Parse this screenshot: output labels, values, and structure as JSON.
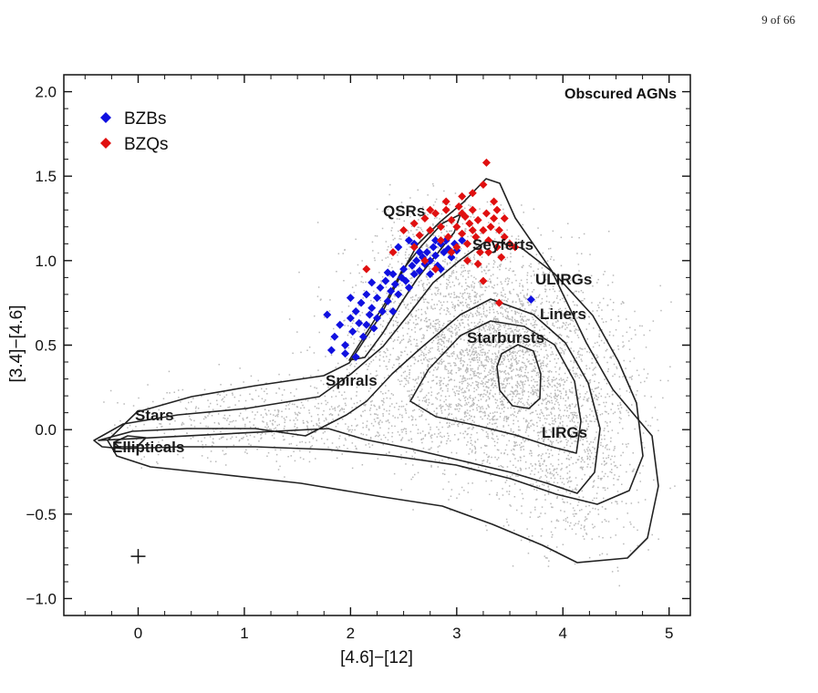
{
  "page": {
    "number_text": "9 of 66"
  },
  "chart_data": {
    "type": "scatter",
    "title": "",
    "annotation": "Obscured AGNs",
    "xlabel": "[4.6]−[12]",
    "ylabel": "[3.4]−[4.6]",
    "xlim": [
      -0.7,
      5.2
    ],
    "ylim": [
      -1.1,
      2.1
    ],
    "x_ticks": [
      {
        "value": 0,
        "label": "0"
      },
      {
        "value": 1,
        "label": "1"
      },
      {
        "value": 2,
        "label": "2"
      },
      {
        "value": 3,
        "label": "3"
      },
      {
        "value": 4,
        "label": "4"
      },
      {
        "value": 5,
        "label": "5"
      }
    ],
    "y_ticks": [
      {
        "value": -1.0,
        "label": "−1.0"
      },
      {
        "value": -0.5,
        "label": "−0.5"
      },
      {
        "value": 0.0,
        "label": "0.0"
      },
      {
        "value": 0.5,
        "label": "0.5"
      },
      {
        "value": 1.0,
        "label": "1.0"
      },
      {
        "value": 1.5,
        "label": "1.5"
      },
      {
        "value": 2.0,
        "label": "2.0"
      }
    ],
    "grid": false,
    "legend": {
      "position": "top-left"
    },
    "series": [
      {
        "name": "BZBs",
        "color": "#1010e0",
        "marker": "diamond",
        "points": [
          [
            1.85,
            0.55
          ],
          [
            1.9,
            0.62
          ],
          [
            1.95,
            0.5
          ],
          [
            2.0,
            0.66
          ],
          [
            2.02,
            0.58
          ],
          [
            2.05,
            0.7
          ],
          [
            2.08,
            0.63
          ],
          [
            2.1,
            0.75
          ],
          [
            2.12,
            0.55
          ],
          [
            2.15,
            0.8
          ],
          [
            2.18,
            0.68
          ],
          [
            2.2,
            0.72
          ],
          [
            2.22,
            0.6
          ],
          [
            2.25,
            0.78
          ],
          [
            2.28,
            0.84
          ],
          [
            2.3,
            0.7
          ],
          [
            2.33,
            0.88
          ],
          [
            2.35,
            0.76
          ],
          [
            2.38,
            0.82
          ],
          [
            2.4,
            0.92
          ],
          [
            2.42,
            0.86
          ],
          [
            2.45,
            0.8
          ],
          [
            2.48,
            0.9
          ],
          [
            2.5,
            0.95
          ],
          [
            2.52,
            0.88
          ],
          [
            2.55,
            0.84
          ],
          [
            2.58,
            0.97
          ],
          [
            2.6,
            0.92
          ],
          [
            2.62,
            1.0
          ],
          [
            2.65,
            0.94
          ],
          [
            2.68,
            1.02
          ],
          [
            2.7,
            0.98
          ],
          [
            2.72,
            1.05
          ],
          [
            2.75,
            1.0
          ],
          [
            2.78,
            1.08
          ],
          [
            2.8,
            1.03
          ],
          [
            2.82,
            0.97
          ],
          [
            2.85,
            1.1
          ],
          [
            2.88,
            1.05
          ],
          [
            2.9,
            1.12
          ],
          [
            2.92,
            1.07
          ],
          [
            2.95,
            1.02
          ],
          [
            2.98,
            1.1
          ],
          [
            3.0,
            1.06
          ],
          [
            3.05,
            1.12
          ],
          [
            1.82,
            0.47
          ],
          [
            1.95,
            0.45
          ],
          [
            2.05,
            0.43
          ],
          [
            2.15,
            0.62
          ],
          [
            2.25,
            0.66
          ],
          [
            2.35,
            0.93
          ],
          [
            2.45,
            1.08
          ],
          [
            2.55,
            1.12
          ],
          [
            2.65,
            1.05
          ],
          [
            2.75,
            0.92
          ],
          [
            2.85,
            0.95
          ],
          [
            3.7,
            0.77
          ],
          [
            1.78,
            0.68
          ],
          [
            2.0,
            0.78
          ],
          [
            2.2,
            0.87
          ],
          [
            2.4,
            0.7
          ],
          [
            2.6,
            1.1
          ],
          [
            2.8,
            1.12
          ]
        ]
      },
      {
        "name": "BZQs",
        "color": "#e01010",
        "marker": "diamond",
        "points": [
          [
            2.5,
            1.18
          ],
          [
            2.6,
            1.22
          ],
          [
            2.65,
            1.15
          ],
          [
            2.7,
            1.25
          ],
          [
            2.75,
            1.18
          ],
          [
            2.8,
            1.28
          ],
          [
            2.85,
            1.2
          ],
          [
            2.9,
            1.3
          ],
          [
            2.92,
            1.14
          ],
          [
            2.95,
            1.24
          ],
          [
            3.0,
            1.2
          ],
          [
            3.02,
            1.32
          ],
          [
            3.05,
            1.16
          ],
          [
            3.08,
            1.26
          ],
          [
            3.1,
            1.1
          ],
          [
            3.12,
            1.22
          ],
          [
            3.15,
            1.3
          ],
          [
            3.18,
            1.14
          ],
          [
            3.2,
            1.24
          ],
          [
            3.22,
            1.05
          ],
          [
            3.25,
            1.18
          ],
          [
            3.28,
            1.28
          ],
          [
            3.3,
            1.12
          ],
          [
            3.32,
            1.2
          ],
          [
            3.35,
            1.25
          ],
          [
            3.38,
            1.08
          ],
          [
            3.4,
            1.18
          ],
          [
            3.42,
            1.02
          ],
          [
            3.45,
            1.14
          ],
          [
            3.5,
            1.1
          ],
          [
            2.95,
            1.05
          ],
          [
            3.0,
            1.08
          ],
          [
            3.1,
            1.0
          ],
          [
            3.2,
            0.98
          ],
          [
            3.25,
            1.45
          ],
          [
            3.28,
            1.58
          ],
          [
            3.15,
            1.4
          ],
          [
            3.05,
            1.38
          ],
          [
            2.9,
            1.35
          ],
          [
            3.35,
            1.35
          ],
          [
            2.8,
            0.95
          ],
          [
            2.7,
            1.0
          ],
          [
            3.25,
            0.88
          ],
          [
            3.4,
            0.75
          ],
          [
            2.15,
            0.95
          ],
          [
            2.4,
            1.05
          ],
          [
            3.55,
            1.08
          ],
          [
            3.45,
            1.25
          ],
          [
            2.85,
            1.12
          ],
          [
            3.3,
            1.05
          ],
          [
            3.05,
            1.28
          ],
          [
            2.75,
            1.3
          ],
          [
            3.15,
            1.18
          ],
          [
            2.6,
            1.08
          ],
          [
            3.38,
            1.3
          ]
        ]
      }
    ],
    "background_sample": {
      "color": "#b9b9b9",
      "description_key": "WISE thermal sources"
    },
    "region_labels": [
      "Stars",
      "Ellipticals",
      "Spirals",
      "QSRs",
      "Seyferts",
      "ULIRGs",
      "Liners",
      "Starbursts",
      "LIRGs"
    ],
    "error_cross": {
      "x": 0.0,
      "y": -0.75
    }
  }
}
